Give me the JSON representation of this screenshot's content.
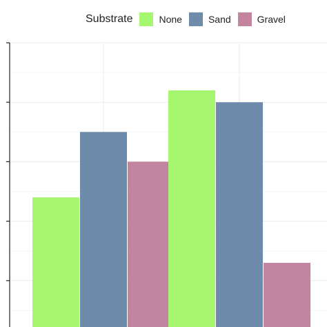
{
  "chart_data": {
    "type": "bar",
    "title": "",
    "xlabel": "",
    "ylabel": "",
    "legend": {
      "title": "Substrate",
      "placement": "top"
    },
    "categories": [
      "",
      ""
    ],
    "series": [
      {
        "name": "None",
        "color": "#a6f76f",
        "values": [
          2.4,
          4.2
        ]
      },
      {
        "name": "Sand",
        "color": "#6e8bab",
        "values": [
          3.5,
          4.0
        ]
      },
      {
        "name": "Gravel",
        "color": "#c2849f",
        "values": [
          3.0,
          1.3
        ]
      }
    ],
    "ylim": [
      0,
      5
    ],
    "yticks": [
      0,
      1,
      2,
      3,
      4,
      5
    ],
    "grid": true
  }
}
